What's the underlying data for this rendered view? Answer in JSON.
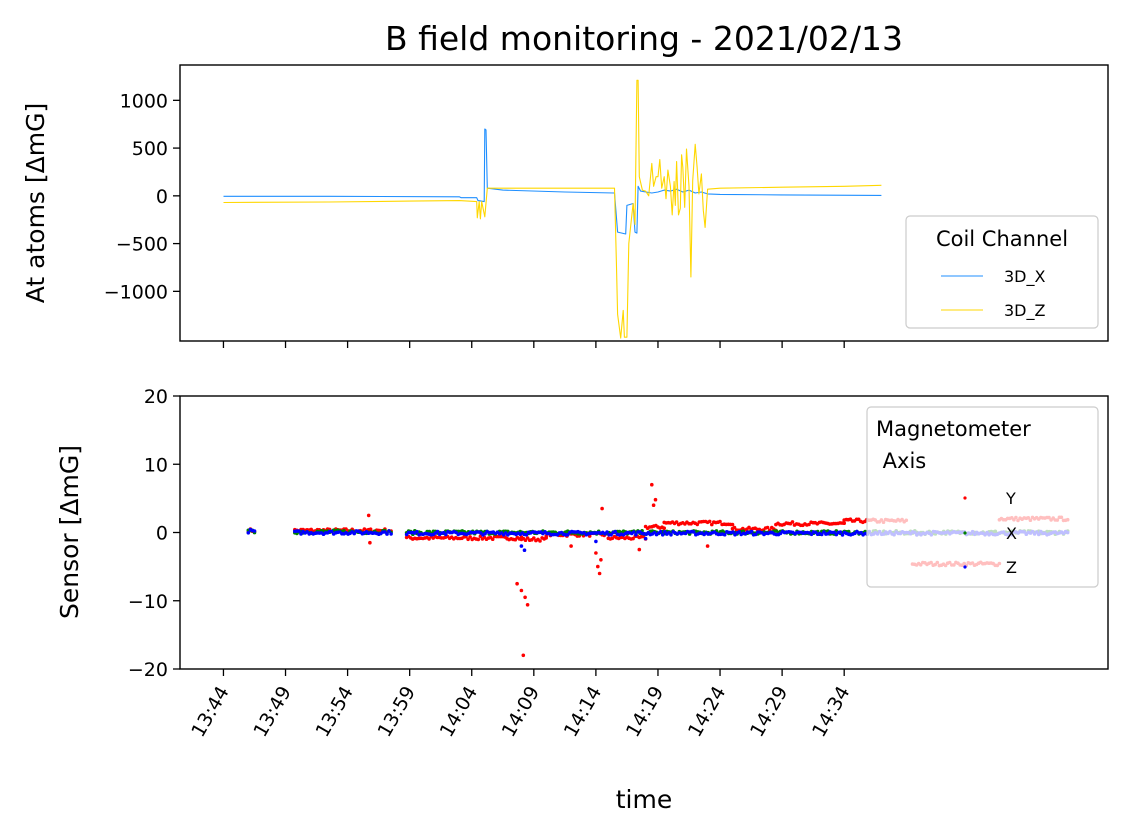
{
  "figure": {
    "title": "B field monitoring - 2021/02/13",
    "xlabel": "time"
  },
  "chart_data": [
    {
      "type": "line",
      "ylabel": "At atoms [ΔmG]",
      "yticks": [
        1000,
        500,
        0,
        -500,
        -1000
      ],
      "ytick_labels": [
        "1000",
        "500",
        "0",
        "−500",
        "−1000"
      ],
      "ylim": [
        -1520,
        1370
      ],
      "xticks_shared_with_lower": true,
      "legend": {
        "title": "Coil Channel",
        "placement": "lower right"
      },
      "x_unit": "minutes since 13:44",
      "series": [
        {
          "name": "3D_X",
          "color": "#1f8fff",
          "points": [
            [
              0,
              -5
            ],
            [
              17,
              -5
            ],
            [
              38,
              -10
            ],
            [
              38.3,
              -20
            ],
            [
              40.8,
              -20
            ],
            [
              41,
              -50
            ],
            [
              42,
              -60
            ],
            [
              42.1,
              700
            ],
            [
              42.3,
              690
            ],
            [
              42.5,
              80
            ],
            [
              45,
              60
            ],
            [
              55,
              40
            ],
            [
              63,
              30
            ],
            [
              63.5,
              -380
            ],
            [
              64.2,
              -390
            ],
            [
              64.8,
              -400
            ],
            [
              65,
              -100
            ],
            [
              66,
              -80
            ],
            [
              66.3,
              -380
            ],
            [
              66.6,
              -390
            ],
            [
              66.8,
              100
            ],
            [
              67.2,
              50
            ],
            [
              69,
              30
            ],
            [
              70,
              40
            ],
            [
              71,
              60
            ],
            [
              72,
              50
            ],
            [
              73,
              70
            ],
            [
              74,
              40
            ],
            [
              75,
              60
            ],
            [
              76,
              30
            ],
            [
              77,
              40
            ],
            [
              78,
              20
            ],
            [
              80,
              15
            ],
            [
              90,
              10
            ],
            [
              106,
              5
            ]
          ]
        },
        {
          "name": "3D_Z",
          "color": "#ffd700",
          "points": [
            [
              0,
              -70
            ],
            [
              17,
              -65
            ],
            [
              30,
              -55
            ],
            [
              38,
              -50
            ],
            [
              40.8,
              -60
            ],
            [
              40.9,
              -230
            ],
            [
              41.2,
              -60
            ],
            [
              41.4,
              -240
            ],
            [
              41.6,
              -60
            ],
            [
              42.1,
              -220
            ],
            [
              42.5,
              80
            ],
            [
              45,
              80
            ],
            [
              55,
              80
            ],
            [
              63,
              80
            ],
            [
              63.3,
              -700
            ],
            [
              63.5,
              -1240
            ],
            [
              64,
              -1490
            ],
            [
              64.4,
              -1200
            ],
            [
              64.6,
              -1480
            ],
            [
              65,
              -1480
            ],
            [
              65.3,
              -500
            ],
            [
              66,
              -80
            ],
            [
              66.3,
              -300
            ],
            [
              66.6,
              1210
            ],
            [
              66.8,
              1210
            ],
            [
              67,
              200
            ],
            [
              67.5,
              60
            ],
            [
              68,
              50
            ],
            [
              68.5,
              0
            ],
            [
              69,
              340
            ],
            [
              69.3,
              100
            ],
            [
              69.7,
              200
            ],
            [
              70,
              200
            ],
            [
              70.3,
              380
            ],
            [
              70.6,
              80
            ],
            [
              71,
              200
            ],
            [
              71.3,
              -30
            ],
            [
              71.6,
              270
            ],
            [
              72,
              100
            ],
            [
              72.3,
              -200
            ],
            [
              72.6,
              150
            ],
            [
              72.8,
              -100
            ],
            [
              73,
              360
            ],
            [
              73.3,
              -200
            ],
            [
              73.6,
              -130
            ],
            [
              73.8,
              430
            ],
            [
              74,
              300
            ],
            [
              74.3,
              -120
            ],
            [
              74.6,
              490
            ],
            [
              75,
              100
            ],
            [
              75.3,
              -850
            ],
            [
              75.6,
              160
            ],
            [
              76,
              540
            ],
            [
              76.3,
              300
            ],
            [
              76.6,
              20
            ],
            [
              77,
              230
            ],
            [
              77.3,
              -150
            ],
            [
              77.6,
              -330
            ],
            [
              78,
              70
            ],
            [
              80,
              80
            ],
            [
              90,
              90
            ],
            [
              100,
              100
            ],
            [
              106,
              110
            ]
          ]
        }
      ]
    },
    {
      "type": "scatter",
      "ylabel": "Sensor [ΔmG]",
      "xlabel": "time",
      "ylim": [
        -20,
        20
      ],
      "yticks": [
        20,
        10,
        0,
        -10,
        -20
      ],
      "ytick_labels": [
        "20",
        "10",
        "0",
        "−10",
        "−20"
      ],
      "xticks": [
        0,
        10,
        20,
        30,
        40,
        50,
        60,
        70,
        80,
        90,
        100
      ],
      "xtick_labels": [
        "13:44",
        "13:49",
        "13:54",
        "13:59",
        "14:04",
        "14:09",
        "14:14",
        "14:19",
        "14:24",
        "14:29",
        "14:34"
      ],
      "xlim": [
        -7,
        142.5
      ],
      "legend": {
        "title": "Magnetometer\n Axis",
        "title_lines": [
          "Magnetometer",
          " Axis"
        ],
        "placement": "upper right"
      },
      "x_unit": "minutes since 13:44",
      "series": [
        {
          "name": "Y",
          "color": "#ff0000",
          "segments": [
            [
              4,
              5,
              0.3
            ],
            [
              11.5,
              27,
              0.3
            ],
            [
              29.5,
              48,
              -0.8
            ],
            [
              48,
              52,
              -1
            ],
            [
              52,
              62,
              -0.3
            ],
            [
              62,
              68,
              -0.8
            ],
            [
              68,
              71,
              0.8
            ],
            [
              71,
              82,
              1.4
            ],
            [
              82,
              89,
              0.5
            ],
            [
              89,
              100,
              1.3
            ],
            [
              100,
              110,
              1.7
            ],
            [
              111,
              125,
              -4.6
            ],
            [
              125,
              136,
              2
            ]
          ],
          "spikes": [
            [
              23.4,
              2.5
            ],
            [
              23.6,
              -1.5
            ],
            [
              47.3,
              -7.5
            ],
            [
              48,
              -8.5
            ],
            [
              48.6,
              -9.5
            ],
            [
              49,
              -10.6
            ],
            [
              48.3,
              -18
            ],
            [
              56,
              -2
            ],
            [
              60,
              -3
            ],
            [
              60.3,
              -5
            ],
            [
              60.6,
              -6
            ],
            [
              60.8,
              -4
            ],
            [
              61,
              3.5
            ],
            [
              69,
              7
            ],
            [
              69.3,
              4
            ],
            [
              69.6,
              4.8
            ],
            [
              67,
              -2.5
            ],
            [
              78,
              -2
            ]
          ]
        },
        {
          "name": "X",
          "color": "#008000",
          "segments": [
            [
              4,
              5,
              0.1
            ],
            [
              11.5,
              27,
              0.1
            ],
            [
              29.5,
              136,
              0
            ]
          ],
          "spikes": []
        },
        {
          "name": "Z",
          "color": "#0000ff",
          "segments": [
            [
              4,
              5,
              0.2
            ],
            [
              11.5,
              27,
              0
            ],
            [
              29.5,
              136,
              -0.1
            ]
          ],
          "spikes": [
            [
              48,
              -2
            ],
            [
              48.5,
              -2.6
            ],
            [
              60,
              -1.3
            ],
            [
              68,
              -0.9
            ]
          ]
        }
      ]
    }
  ]
}
